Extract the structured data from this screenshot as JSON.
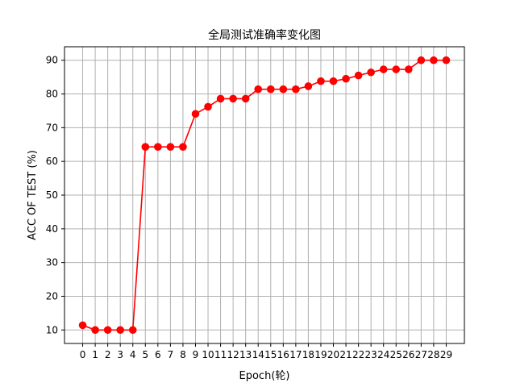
{
  "chart_data": {
    "type": "line",
    "title": "全局测试准确率变化图",
    "xlabel": "Epoch(轮)",
    "ylabel": "ACC OF TEST (%)",
    "x": [
      0,
      1,
      2,
      3,
      4,
      5,
      6,
      7,
      8,
      9,
      10,
      11,
      12,
      13,
      14,
      15,
      16,
      17,
      18,
      19,
      20,
      21,
      22,
      23,
      24,
      25,
      26,
      27,
      28,
      29
    ],
    "x_tick_labels": [
      "0",
      "1",
      "2",
      "3",
      "4",
      "5",
      "6",
      "7",
      "8",
      "9",
      "10",
      "11",
      "12",
      "13",
      "14",
      "15",
      "16",
      "17",
      "18",
      "19",
      "20",
      "21",
      "22",
      "23",
      "24",
      "25",
      "26",
      "27",
      "28",
      "29"
    ],
    "y_ticks": [
      10,
      20,
      30,
      40,
      50,
      60,
      70,
      80,
      90
    ],
    "y_tick_labels": [
      "10",
      "20",
      "30",
      "40",
      "50",
      "60",
      "70",
      "80",
      "90"
    ],
    "xlim": [
      -1.45,
      30.45
    ],
    "ylim": [
      6.0,
      94.0
    ],
    "grid": true,
    "series": [
      {
        "color": "#ff0000",
        "marker": "circle",
        "values": [
          11.4,
          10.0,
          10.0,
          10.0,
          10.0,
          64.3,
          64.3,
          64.3,
          64.3,
          74.1,
          76.2,
          78.6,
          78.6,
          78.6,
          81.4,
          81.4,
          81.4,
          81.4,
          82.3,
          83.8,
          83.8,
          84.5,
          85.5,
          86.4,
          87.3,
          87.3,
          87.3,
          90.0,
          90.0,
          90.0
        ]
      }
    ]
  }
}
